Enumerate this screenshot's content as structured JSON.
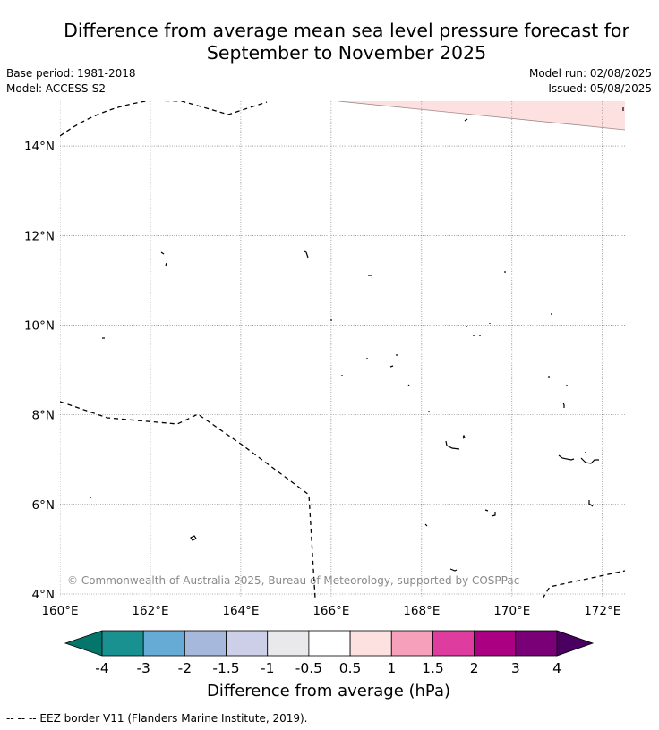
{
  "title_line1": "Difference from average mean sea level pressure forecast for",
  "title_line2": "September to November 2025",
  "base_period": "Base period: 1981-2018",
  "model": "Model: ACCESS-S2",
  "model_run": "Model run: 02/08/2025",
  "issued": "Issued: 05/08/2025",
  "copyright": "© Commonwealth of Australia 2025, Bureau of Meteorology, supported by COSPPac",
  "footnote": "--  --  -- EEZ border V11 (Flanders Marine Institute, 2019).",
  "map": {
    "lon_range": [
      160,
      172.5
    ],
    "lat_range": [
      3.9,
      15.0
    ],
    "lon_ticks": [
      "160°E",
      "162°E",
      "164°E",
      "166°E",
      "168°E",
      "170°E",
      "172°E"
    ],
    "lat_ticks": [
      "4°N",
      "6°N",
      "8°N",
      "10°N",
      "12°N",
      "14°N"
    ],
    "grid": "dotted",
    "field_colors": {
      "background": "#ffffff",
      "positive_0_5_to_1": "#fde0e0"
    }
  },
  "colorbar": {
    "title": "Difference from average (hPa)",
    "tick_labels": [
      "-4",
      "-3",
      "-2",
      "-1.5",
      "-1",
      "-0.5",
      "0.5",
      "1",
      "1.5",
      "2",
      "3",
      "4"
    ],
    "colors": [
      "#1a9191",
      "#66abd6",
      "#a6b9dc",
      "#cdcfe8",
      "#e9e9ec",
      "#ffffff",
      "#fde0e0",
      "#f7a0bc",
      "#de3d9f",
      "#ab0082",
      "#7a0077"
    ],
    "extend_low_color": "#04756a",
    "extend_high_color": "#4a0060"
  }
}
